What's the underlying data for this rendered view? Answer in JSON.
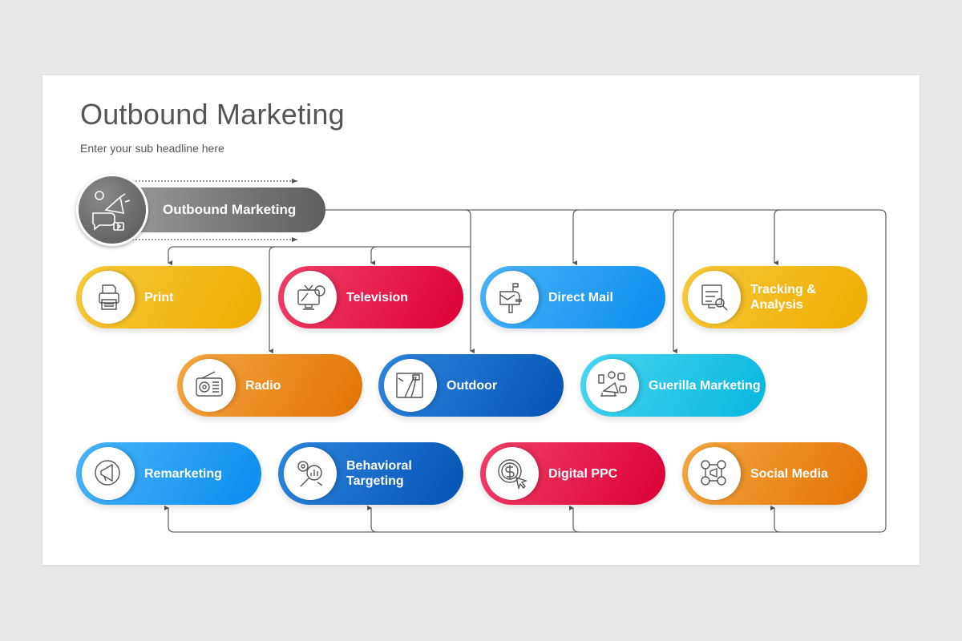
{
  "title": "Outbound Marketing",
  "subtitle": "Enter your sub headline here",
  "root": {
    "label": "Outbound Marketing",
    "icon": "megaphone-chat-icon",
    "color": "#6e6e6e"
  },
  "nodes": [
    {
      "label": "Print",
      "icon": "printer-icon",
      "color": "#f2b90f"
    },
    {
      "label": "Television",
      "icon": "television-icon",
      "color": "#e61e4d"
    },
    {
      "label": "Direct Mail",
      "icon": "mailbox-icon",
      "color": "#1e9bf2"
    },
    {
      "label": "Tracking & Analysis",
      "icon": "analytics-search-icon",
      "color": "#f2b90f"
    },
    {
      "label": "Radio",
      "icon": "radio-icon",
      "color": "#ea8a1f"
    },
    {
      "label": "Outdoor",
      "icon": "billboard-road-icon",
      "color": "#1a6cc8"
    },
    {
      "label": "Guerilla Marketing",
      "icon": "megaphone-social-icon",
      "color": "#22c6e8"
    },
    {
      "label": "Remarketing",
      "icon": "megaphone-cycle-icon",
      "color": "#1e9bf2"
    },
    {
      "label": "Behavioral Targeting",
      "icon": "target-analysis-icon",
      "color": "#1a6cc8"
    },
    {
      "label": "Digital PPC",
      "icon": "dollar-click-icon",
      "color": "#e61e4d"
    },
    {
      "label": "Social Media",
      "icon": "social-network-icon",
      "color": "#ea8a1f"
    }
  ]
}
